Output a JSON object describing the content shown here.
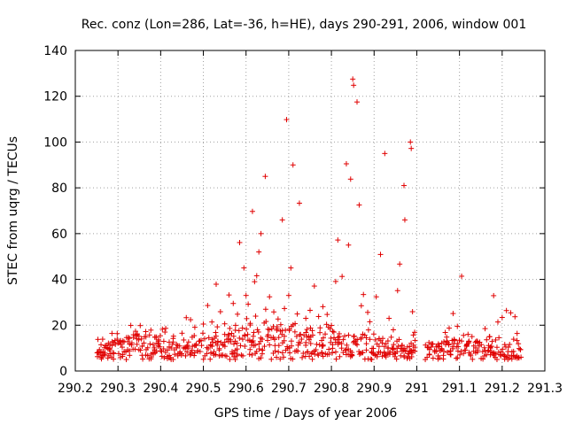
{
  "chart_data": {
    "type": "scatter",
    "title": "Rec. conz (Lon=286, Lat=-36, h=HE), days 290-291, 2006, window 001",
    "xlabel": "GPS time / Days of year 2006",
    "ylabel": "STEC from uqrg / TECUs",
    "xlim": [
      290.2,
      291.3
    ],
    "ylim": [
      0,
      140
    ],
    "grid": true,
    "marker": "plus",
    "color": "#e00000",
    "x_ticks": [
      290.2,
      290.3,
      290.4,
      290.5,
      290.6,
      290.7,
      290.8,
      290.9,
      291.0,
      291.1,
      291.2,
      291.3
    ],
    "x_tick_labels": [
      "290.2",
      "290.3",
      "290.4",
      "290.5",
      "290.6",
      "290.7",
      "290.8",
      "290.9",
      "291",
      "291.1",
      "291.2",
      "291.3"
    ],
    "y_ticks": [
      0,
      20,
      40,
      60,
      80,
      100,
      120,
      140
    ],
    "y_tick_labels": [
      "0",
      "20",
      "40",
      "60",
      "80",
      "100",
      "120",
      "140"
    ],
    "points": [
      [
        290.253,
        13.8
      ],
      [
        290.26,
        8.2
      ],
      [
        290.27,
        11.0
      ],
      [
        290.28,
        9.5
      ],
      [
        290.29,
        7.6
      ],
      [
        290.3,
        12.2
      ],
      [
        290.31,
        10.4
      ],
      [
        290.32,
        14.6
      ],
      [
        290.33,
        19.9
      ],
      [
        290.345,
        16.2
      ],
      [
        290.355,
        14.0
      ],
      [
        290.365,
        17.2
      ],
      [
        290.375,
        11.8
      ],
      [
        290.385,
        10.1
      ],
      [
        290.395,
        13.6
      ],
      [
        290.41,
        17.0
      ],
      [
        290.42,
        12.6
      ],
      [
        290.43,
        15.2
      ],
      [
        290.44,
        11.0
      ],
      [
        290.45,
        16.5
      ],
      [
        290.46,
        23.3
      ],
      [
        290.47,
        22.4
      ],
      [
        290.48,
        19.1
      ],
      [
        290.49,
        13.0
      ],
      [
        290.5,
        20.5
      ],
      [
        290.51,
        28.6
      ],
      [
        290.52,
        21.4
      ],
      [
        290.53,
        37.9
      ],
      [
        290.54,
        25.9
      ],
      [
        290.55,
        20.6
      ],
      [
        290.56,
        33.2
      ],
      [
        290.57,
        29.5
      ],
      [
        290.575,
        17.8
      ],
      [
        290.58,
        24.8
      ],
      [
        290.585,
        56.1
      ],
      [
        290.595,
        45.0
      ],
      [
        290.6,
        33.0
      ],
      [
        290.605,
        29.2
      ],
      [
        290.61,
        20.8
      ],
      [
        290.615,
        69.7
      ],
      [
        290.62,
        39.0
      ],
      [
        290.625,
        41.6
      ],
      [
        290.63,
        52.0
      ],
      [
        290.635,
        60.0
      ],
      [
        290.645,
        85.0
      ],
      [
        290.655,
        32.4
      ],
      [
        290.665,
        25.8
      ],
      [
        290.675,
        22.7
      ],
      [
        290.685,
        66.0
      ],
      [
        290.69,
        27.3
      ],
      [
        290.695,
        109.8
      ],
      [
        290.7,
        33.0
      ],
      [
        290.705,
        45.0
      ],
      [
        290.71,
        90.0
      ],
      [
        290.72,
        24.9
      ],
      [
        290.725,
        73.3
      ],
      [
        290.74,
        23.0
      ],
      [
        290.75,
        26.5
      ],
      [
        290.76,
        37.1
      ],
      [
        290.77,
        23.8
      ],
      [
        290.78,
        28.1
      ],
      [
        290.79,
        24.7
      ],
      [
        290.8,
        19.9
      ],
      [
        290.81,
        39.1
      ],
      [
        290.815,
        57.2
      ],
      [
        290.825,
        41.3
      ],
      [
        290.835,
        90.5
      ],
      [
        290.84,
        55.0
      ],
      [
        290.845,
        83.8
      ],
      [
        290.85,
        127.5
      ],
      [
        290.852,
        124.8
      ],
      [
        290.86,
        117.5
      ],
      [
        290.865,
        72.5
      ],
      [
        290.87,
        28.5
      ],
      [
        290.875,
        33.4
      ],
      [
        290.885,
        25.6
      ],
      [
        290.89,
        21.5
      ],
      [
        290.905,
        32.4
      ],
      [
        290.915,
        50.9
      ],
      [
        290.925,
        95.0
      ],
      [
        290.935,
        23.0
      ],
      [
        290.945,
        18.0
      ],
      [
        290.955,
        35.1
      ],
      [
        290.96,
        46.7
      ],
      [
        290.97,
        81.0
      ],
      [
        290.972,
        66.0
      ],
      [
        290.985,
        100.0
      ],
      [
        290.987,
        97.2
      ],
      [
        290.99,
        25.9
      ],
      [
        290.995,
        16.9
      ],
      [
        291.03,
        9.4
      ],
      [
        291.05,
        10.6
      ],
      [
        291.07,
        14.8
      ],
      [
        291.085,
        25.1
      ],
      [
        291.095,
        19.5
      ],
      [
        291.105,
        41.4
      ],
      [
        291.12,
        16.0
      ],
      [
        291.14,
        13.0
      ],
      [
        291.16,
        18.5
      ],
      [
        291.17,
        15.0
      ],
      [
        291.18,
        32.9
      ],
      [
        291.19,
        21.4
      ],
      [
        291.2,
        23.4
      ],
      [
        291.21,
        26.4
      ],
      [
        291.22,
        25.4
      ],
      [
        291.23,
        23.7
      ],
      [
        291.235,
        16.4
      ],
      [
        291.238,
        11.9
      ]
    ]
  }
}
